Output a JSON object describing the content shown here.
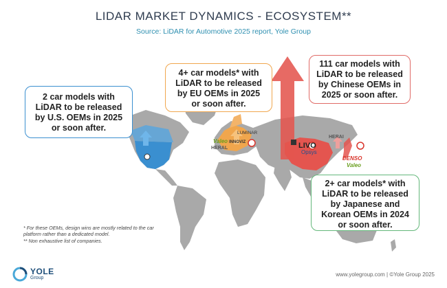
{
  "title": "LIDAR MARKET DYNAMICS  - ECOSYSTEM**",
  "subtitle": "Source: LiDAR for Automotive 2025 report, Yole Group",
  "callouts": {
    "us": [
      "2 car models with",
      "LiDAR to be released",
      "by U.S. OEMs in 2025",
      "or soon after."
    ],
    "eu": [
      "4+ car models* with",
      "LiDAR to be released",
      "by EU OEMs in 2025",
      "or soon after."
    ],
    "cn": [
      "111 car models with",
      "LiDAR to be released",
      "by Chinese OEMs in",
      "2025 or soon after."
    ],
    "jp": [
      "2+ car models* with",
      "LiDAR to be released",
      "by Japanese and",
      "Korean OEMs in 2024",
      "or soon after."
    ]
  },
  "footnotes": {
    "fn1": "* For these OEMs, design wins are mostly related to the car platform rather than a dedicated model.",
    "fn2": "** Non exhaustive list of companies."
  },
  "logo": {
    "name": "YOLE",
    "sub": "Group"
  },
  "footer": "www.yolegroup.com | ©Yole Group 2025",
  "brands": {
    "valeo_eu": "Valeo",
    "heral_eu": "HERAL",
    "luminar": "LUMINAR",
    "innoviz": "INNOVIZ",
    "livox": "LIVO",
    "opsys": "Opsys",
    "heral_cn": "HERAI",
    "denso": "DENSO",
    "valeo_jp": "Valeo"
  },
  "colors": {
    "us": "#3a8fd0",
    "eu": "#f0a64d",
    "cn": "#e06a66",
    "jp": "#63b77a",
    "land": "#a9a9a9",
    "title": "#2f3c4f",
    "subtitle": "#2e8fb0"
  }
}
